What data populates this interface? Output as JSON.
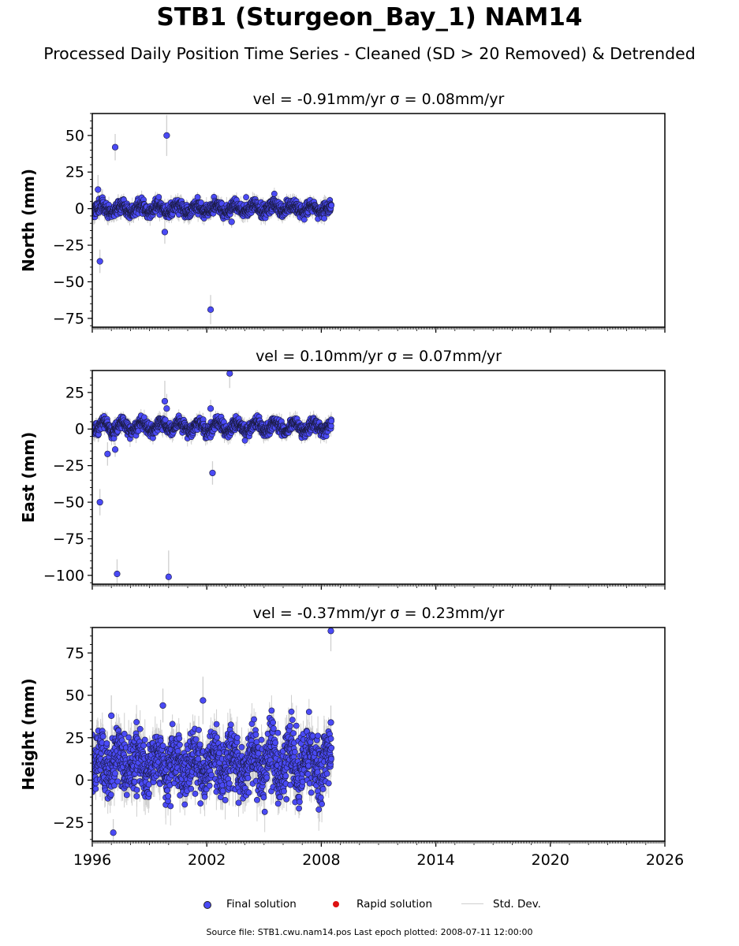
{
  "title": "STB1 (Sturgeon_Bay_1) NAM14",
  "subtitle": "Processed Daily Position Time Series - Cleaned (SD > 20 Removed) & Detrended",
  "footer": "Source file: STB1.cwu.nam14.pos  Last epoch plotted: 2008-07-11 12:00:00",
  "legend": {
    "final": "Final solution",
    "rapid": "Rapid solution",
    "std": "Std. Dev."
  },
  "colors": {
    "final": "#4a4af5",
    "rapid": "#dd1111",
    "std": "#cfcfcf"
  },
  "chart_data": [
    {
      "type": "scatter",
      "title": "vel = -0.91mm/yr   σ = 0.08mm/yr",
      "ylabel": "North (mm)",
      "xlim": [
        1996,
        2026
      ],
      "ylim": [
        -81,
        65
      ],
      "yticks": [
        50,
        25,
        0,
        -25,
        -50,
        -75
      ],
      "ytick_labels": [
        "50",
        "25",
        "0",
        "−25",
        "−50",
        "−75"
      ],
      "grid": false,
      "series": [
        {
          "name": "Final solution",
          "x": [
            1996.3,
            1996.4,
            1997.2,
            1999.9,
            2002.2,
            1999.8,
            2003.3
          ],
          "y": [
            13,
            -36,
            42,
            50,
            -69,
            -16,
            -9
          ],
          "err": [
            10,
            8,
            9,
            14,
            10,
            8,
            4
          ]
        }
      ],
      "band": {
        "x_start": 1996.0,
        "x_end": 2008.53,
        "seed": 11,
        "center": 0,
        "amplitude": 2.5,
        "noise": 2.2,
        "err": 4
      }
    },
    {
      "type": "scatter",
      "title": "vel = 0.10mm/yr   σ = 0.07mm/yr",
      "ylabel": "East (mm)",
      "xlim": [
        1996,
        2026
      ],
      "ylim": [
        -106,
        40
      ],
      "yticks": [
        25,
        0,
        -25,
        -50,
        -75,
        -100
      ],
      "ytick_labels": [
        "25",
        "0",
        "−25",
        "−50",
        "−75",
        "−100"
      ],
      "grid": false,
      "series": [
        {
          "name": "Final solution",
          "x": [
            1996.4,
            1996.8,
            1997.2,
            1997.3,
            2000.0,
            2002.3,
            2003.2,
            1999.8,
            1999.9,
            2002.2
          ],
          "y": [
            -50,
            -17,
            -14,
            -99,
            -101,
            -30,
            38,
            19,
            14,
            14
          ],
          "err": [
            9,
            8,
            5,
            10,
            18,
            8,
            10,
            14,
            10,
            6
          ]
        }
      ],
      "band": {
        "x_start": 1996.0,
        "x_end": 2008.53,
        "seed": 23,
        "center": 1.5,
        "amplitude": 3.0,
        "noise": 2.0,
        "err": 4
      }
    },
    {
      "type": "scatter",
      "title": "vel = -0.37mm/yr   σ = 0.23mm/yr",
      "ylabel": "Height (mm)",
      "xlim": [
        1996,
        2026
      ],
      "xticks": [
        1996,
        2002,
        2008,
        2014,
        2020,
        2026
      ],
      "xtick_labels": [
        "1996",
        "2002",
        "2008",
        "2014",
        "2020",
        "2026"
      ],
      "ylim": [
        -36,
        90
      ],
      "yticks": [
        75,
        50,
        25,
        0,
        -25
      ],
      "ytick_labels": [
        "75",
        "50",
        "25",
        "0",
        "−25"
      ],
      "grid": false,
      "series": [
        {
          "name": "Final solution",
          "x": [
            2008.5,
            2001.8,
            1997.1,
            1997.0,
            1999.7,
            2008.5
          ],
          "y": [
            88,
            47,
            -31,
            38,
            44,
            34
          ],
          "err": [
            12,
            14,
            8,
            12,
            10,
            10
          ]
        }
      ],
      "band": {
        "x_start": 1996.0,
        "x_end": 2008.53,
        "seed": 37,
        "center": 10,
        "amplitude": 7,
        "noise": 8.5,
        "err": 9
      }
    }
  ]
}
